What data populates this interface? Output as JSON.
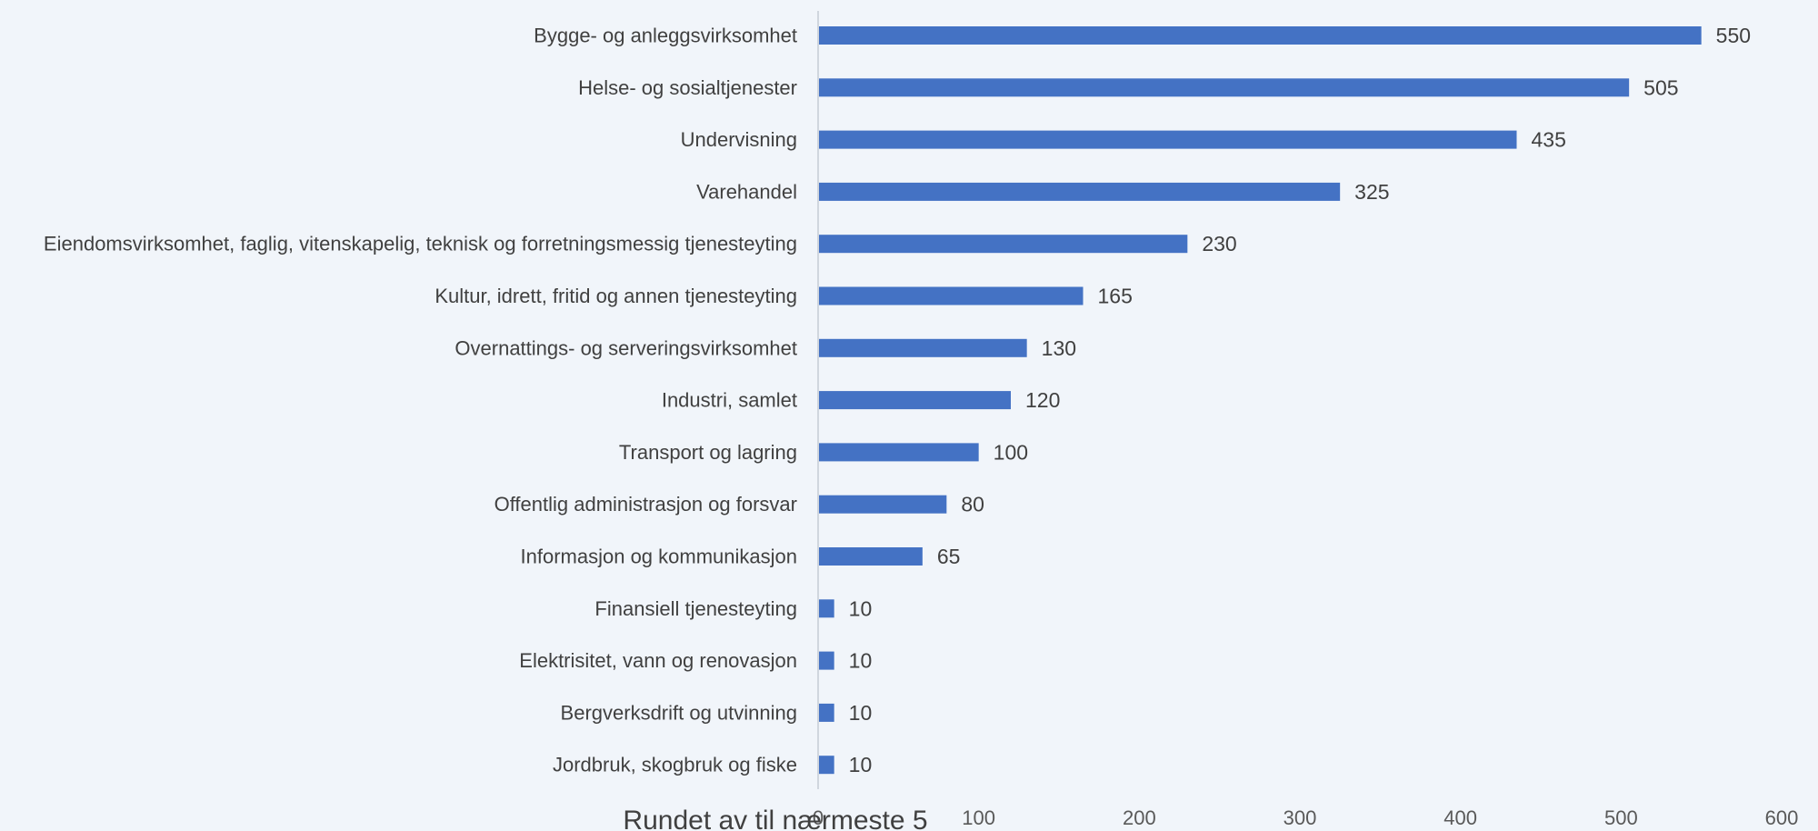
{
  "chart_data": {
    "type": "bar",
    "orientation": "horizontal",
    "categories": [
      "Bygge- og anleggsvirksomhet",
      "Helse- og sosialtjenester",
      "Undervisning",
      "Varehandel",
      "Eiendomsvirksomhet, faglig, vitenskapelig, teknisk og forretningsmessig tjenesteyting",
      "Kultur, idrett, fritid og annen tjenesteyting",
      "Overnattings- og serveringsvirksomhet",
      "Industri, samlet",
      "Transport og lagring",
      "Offentlig administrasjon og forsvar",
      "Informasjon og kommunikasjon",
      "Finansiell tjenesteyting",
      "Elektrisitet, vann og renovasjon",
      "Bergverksdrift og utvinning",
      "Jordbruk, skogbruk og fiske"
    ],
    "values": [
      550,
      505,
      435,
      325,
      230,
      165,
      130,
      120,
      100,
      80,
      65,
      10,
      10,
      10,
      10
    ],
    "xlabel": "Rundet av til nærmeste 5",
    "ylabel": "",
    "xlim": [
      0,
      600
    ],
    "xticks": [
      "0",
      "100",
      "200",
      "300",
      "400",
      "500",
      "600"
    ],
    "data_labels": true,
    "grid": false,
    "legend": "none",
    "bar_color": "#4472c4",
    "axis_color": "#d0d6de",
    "background": "#f1f5fa"
  }
}
